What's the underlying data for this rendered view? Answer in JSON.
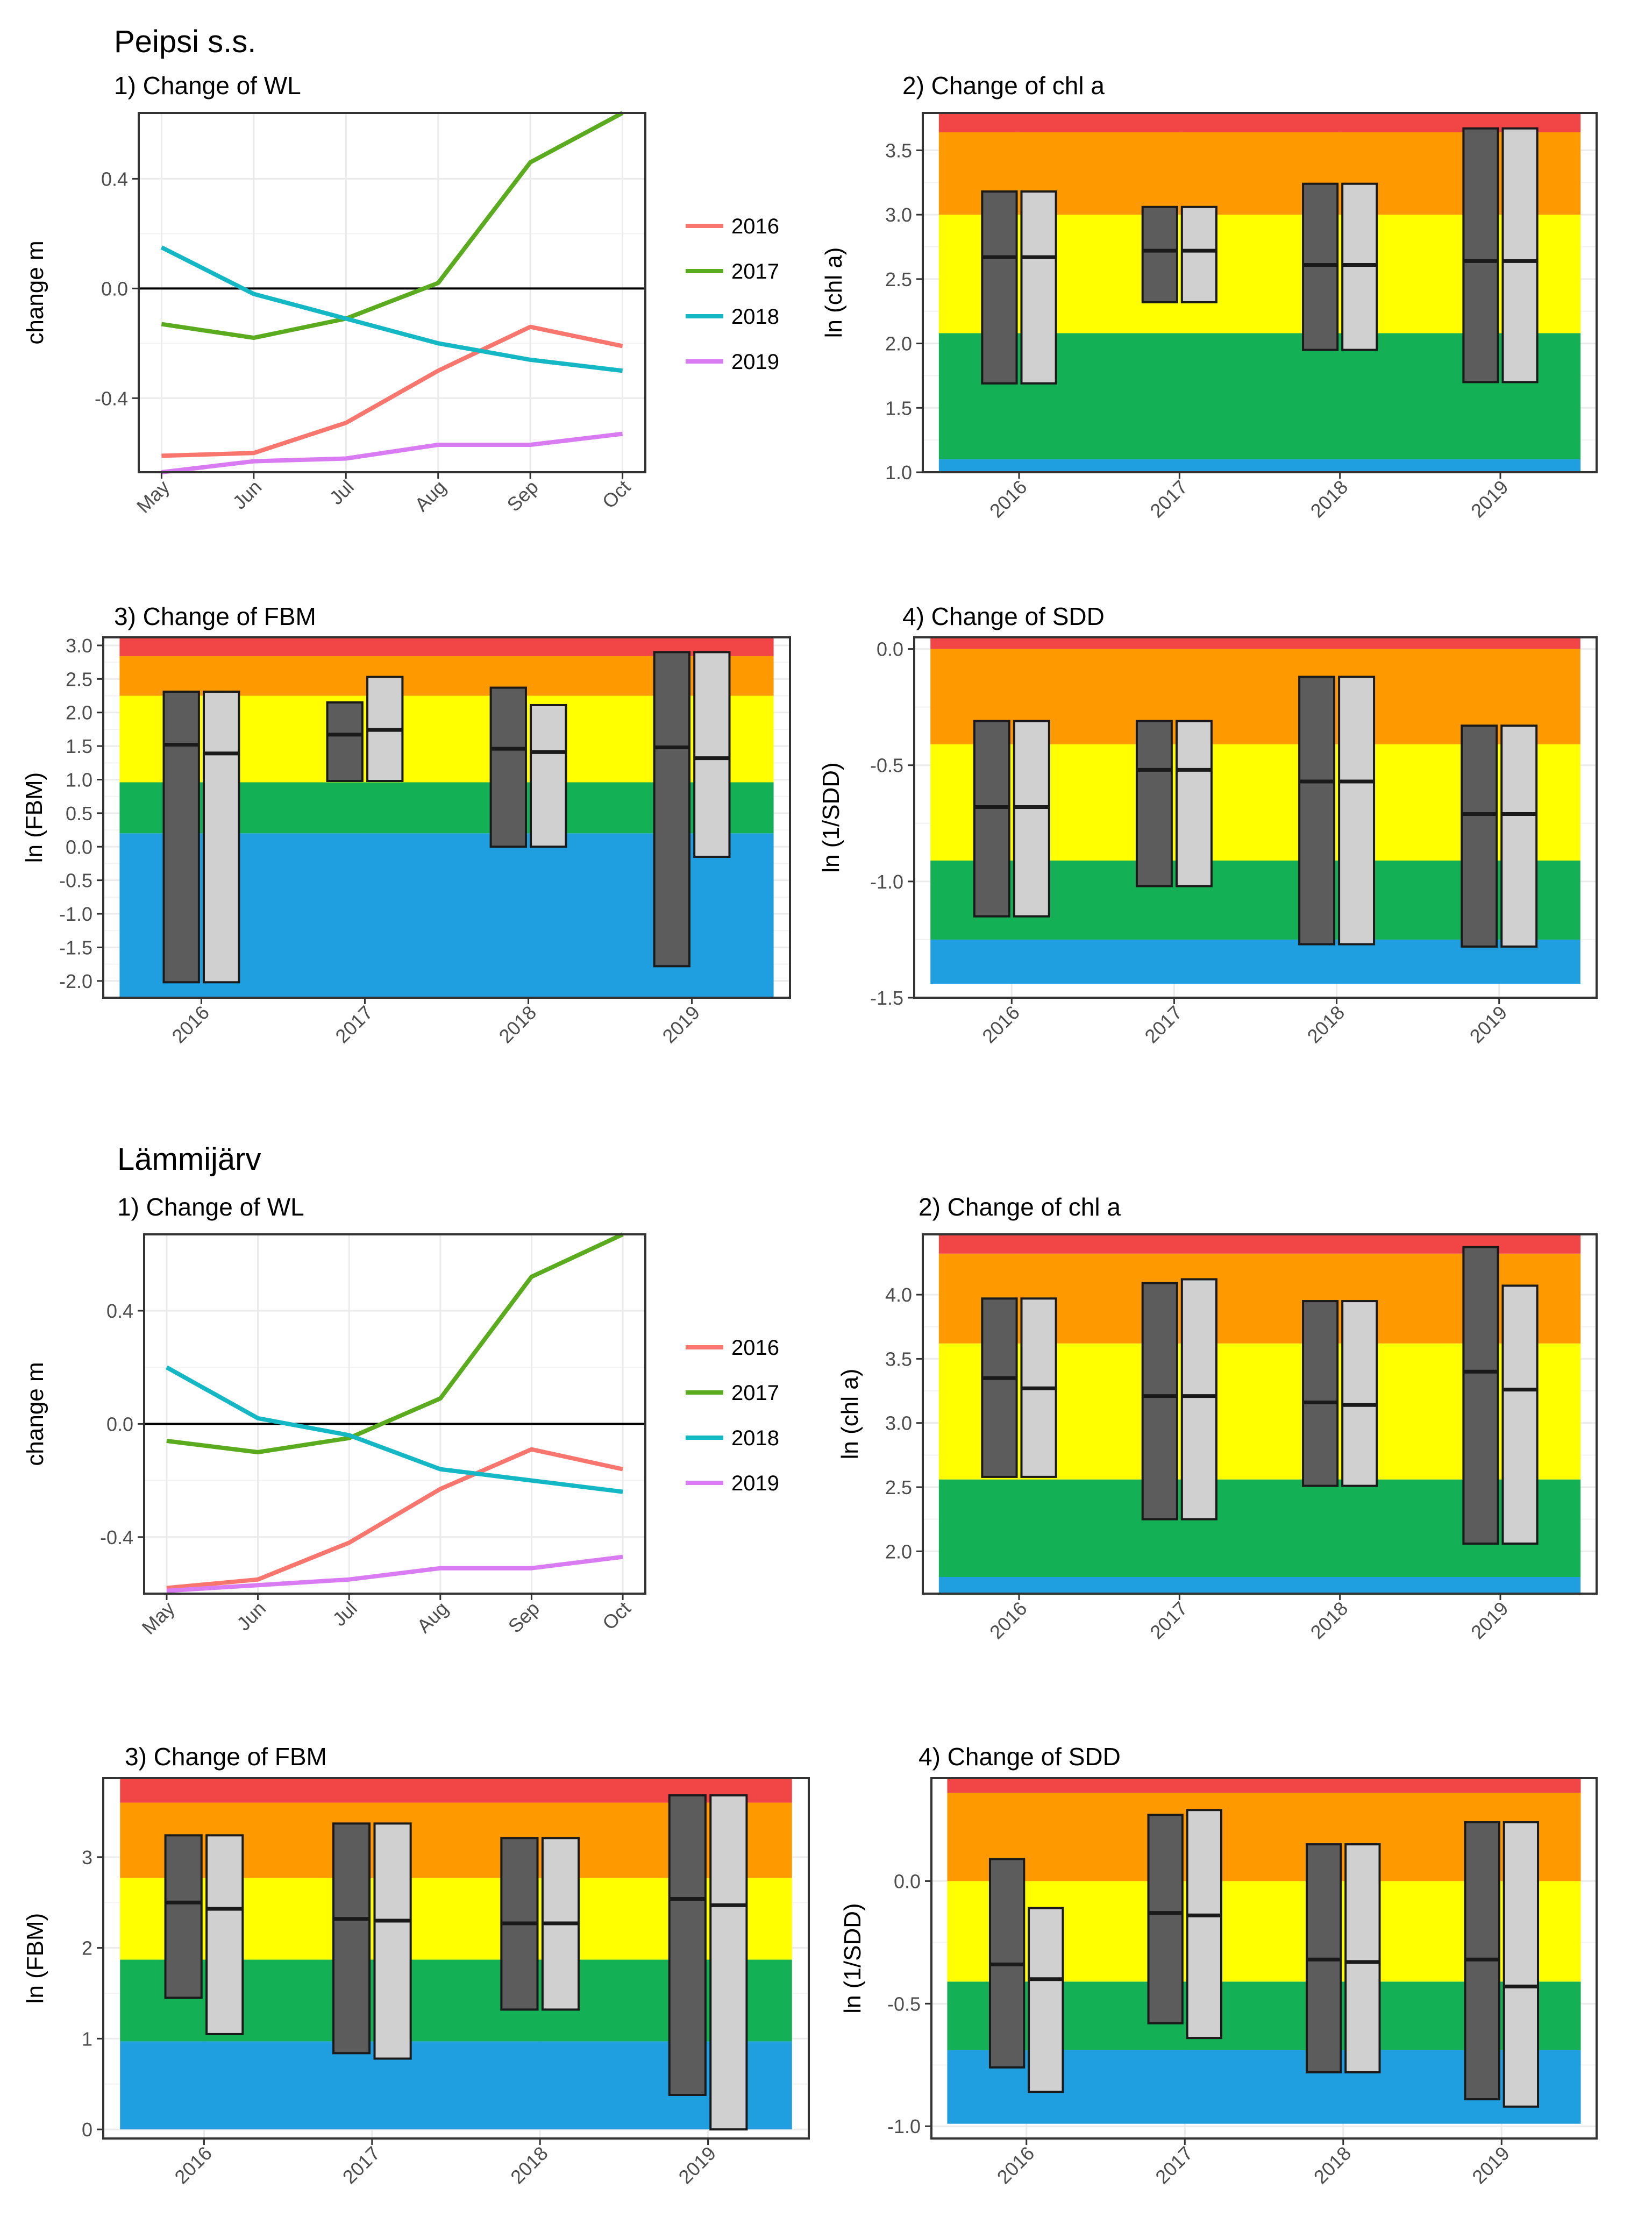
{
  "sections": [
    {
      "name": "Peipsi s.s."
    },
    {
      "name": "Lämmijärv"
    }
  ],
  "palette": {
    "red": "#f24545",
    "orange": "#ff9900",
    "yellow": "#ffff00",
    "green": "#14b055",
    "blue": "#1f9fe0",
    "dark_box": "#5c5c5c",
    "light_box": "#d0d0d0",
    "s2016": "#f8766d",
    "s2017": "#5bab1e",
    "s2018": "#14b8c5",
    "s2019": "#d97bf2"
  },
  "chart_data": [
    {
      "id": "p_wl",
      "type": "line",
      "title": "1) Change of WL",
      "ylabel": "change m",
      "categories": [
        "May",
        "Jun",
        "Jul",
        "Aug",
        "Sep",
        "Oct"
      ],
      "ylim": [
        -0.67,
        0.64
      ],
      "yticks": [
        0.4,
        0.0,
        -0.4
      ],
      "ytick_labels": [
        "0.4",
        "0.0",
        "-0.4"
      ],
      "reference_line": 0,
      "series": [
        {
          "name": "2016",
          "color": "#f8766d",
          "values": [
            -0.61,
            -0.6,
            -0.49,
            -0.3,
            -0.14,
            -0.21
          ]
        },
        {
          "name": "2017",
          "color": "#5bab1e",
          "values": [
            -0.13,
            -0.18,
            -0.11,
            0.02,
            0.46,
            0.64
          ]
        },
        {
          "name": "2018",
          "color": "#14b8c5",
          "values": [
            0.15,
            -0.02,
            -0.11,
            -0.2,
            -0.26,
            -0.3
          ]
        },
        {
          "name": "2019",
          "color": "#d97bf2",
          "values": [
            -0.67,
            -0.63,
            -0.62,
            -0.57,
            -0.57,
            -0.53
          ]
        }
      ]
    },
    {
      "id": "p_chl",
      "type": "box",
      "title": "2) Change of chl a",
      "ylabel": "ln (chl a)",
      "categories": [
        "2016",
        "2017",
        "2018",
        "2019"
      ],
      "ylim": [
        1.0,
        3.79
      ],
      "yticks": [
        1.0,
        1.5,
        2.0,
        2.5,
        3.0,
        3.5
      ],
      "ytick_labels": [
        "1.0",
        "1.5",
        "2.0",
        "2.5",
        "3.0",
        "3.5"
      ],
      "bands": [
        {
          "from": 1.0,
          "to": 1.1,
          "color": "blue"
        },
        {
          "from": 1.1,
          "to": 2.08,
          "color": "green"
        },
        {
          "from": 2.08,
          "to": 3.0,
          "color": "yellow"
        },
        {
          "from": 3.0,
          "to": 3.64,
          "color": "orange"
        },
        {
          "from": 3.64,
          "to": 3.79,
          "color": "red"
        }
      ],
      "boxes": [
        {
          "year": "2016",
          "dark": {
            "low": 1.69,
            "mid": 2.67,
            "high": 3.18
          },
          "light": {
            "low": 1.69,
            "mid": 2.67,
            "high": 3.18
          }
        },
        {
          "year": "2017",
          "dark": {
            "low": 2.32,
            "mid": 2.72,
            "high": 3.06
          },
          "light": {
            "low": 2.32,
            "mid": 2.72,
            "high": 3.06
          }
        },
        {
          "year": "2018",
          "dark": {
            "low": 1.95,
            "mid": 2.61,
            "high": 3.24
          },
          "light": {
            "low": 1.95,
            "mid": 2.61,
            "high": 3.24
          }
        },
        {
          "year": "2019",
          "dark": {
            "low": 1.7,
            "mid": 2.64,
            "high": 3.67
          },
          "light": {
            "low": 1.7,
            "mid": 2.64,
            "high": 3.67
          }
        }
      ]
    },
    {
      "id": "p_fbm",
      "type": "box",
      "title": "3) Change of FBM",
      "ylabel": "ln (FBM)",
      "categories": [
        "2016",
        "2017",
        "2018",
        "2019"
      ],
      "ylim": [
        -2.25,
        3.12
      ],
      "yticks": [
        3.0,
        2.5,
        2.0,
        1.5,
        1.0,
        0.5,
        0.0,
        -0.5,
        -1.0,
        -1.5,
        -2.0
      ],
      "ytick_labels": [
        "3.0",
        "2.5",
        "2.0",
        "1.5",
        "1.0",
        "0.5",
        "0.0",
        "-0.5",
        "-1.0",
        "-1.5",
        "-2.0"
      ],
      "bands": [
        {
          "from": -2.25,
          "to": 0.2,
          "color": "blue"
        },
        {
          "from": 0.2,
          "to": 0.96,
          "color": "green"
        },
        {
          "from": 0.96,
          "to": 2.25,
          "color": "yellow"
        },
        {
          "from": 2.25,
          "to": 2.84,
          "color": "orange"
        },
        {
          "from": 2.84,
          "to": 3.12,
          "color": "red"
        }
      ],
      "boxes": [
        {
          "year": "2016",
          "dark": {
            "low": -2.02,
            "mid": 1.52,
            "high": 2.31
          },
          "light": {
            "low": -2.02,
            "mid": 1.39,
            "high": 2.31
          }
        },
        {
          "year": "2017",
          "dark": {
            "low": 0.98,
            "mid": 1.67,
            "high": 2.15
          },
          "light": {
            "low": 0.98,
            "mid": 1.74,
            "high": 2.53
          }
        },
        {
          "year": "2018",
          "dark": {
            "low": 0.0,
            "mid": 1.46,
            "high": 2.37
          },
          "light": {
            "low": 0.0,
            "mid": 1.41,
            "high": 2.11
          }
        },
        {
          "year": "2019",
          "dark": {
            "low": -1.78,
            "mid": 1.48,
            "high": 2.9
          },
          "light": {
            "low": -0.15,
            "mid": 1.32,
            "high": 2.9
          }
        }
      ]
    },
    {
      "id": "p_sdd",
      "type": "box",
      "title": "4) Change of SDD",
      "ylabel": "ln (1/SDD)",
      "categories": [
        "2016",
        "2017",
        "2018",
        "2019"
      ],
      "ylim": [
        -1.5,
        0.05
      ],
      "yticks": [
        0.0,
        -0.5,
        -1.0,
        -1.5
      ],
      "ytick_labels": [
        "0.0",
        "-0.5",
        "-1.0",
        "-1.5"
      ],
      "bands": [
        {
          "from": -1.44,
          "to": -1.25,
          "color": "blue"
        },
        {
          "from": -1.25,
          "to": -0.91,
          "color": "green"
        },
        {
          "from": -0.91,
          "to": -0.41,
          "color": "yellow"
        },
        {
          "from": -0.41,
          "to": 0.0,
          "color": "orange"
        },
        {
          "from": 0.0,
          "to": 0.05,
          "color": "red"
        }
      ],
      "boxes": [
        {
          "year": "2016",
          "dark": {
            "low": -1.15,
            "mid": -0.68,
            "high": -0.31
          },
          "light": {
            "low": -1.15,
            "mid": -0.68,
            "high": -0.31
          }
        },
        {
          "year": "2017",
          "dark": {
            "low": -1.02,
            "mid": -0.52,
            "high": -0.31
          },
          "light": {
            "low": -1.02,
            "mid": -0.52,
            "high": -0.31
          }
        },
        {
          "year": "2018",
          "dark": {
            "low": -1.27,
            "mid": -0.57,
            "high": -0.12
          },
          "light": {
            "low": -1.27,
            "mid": -0.57,
            "high": -0.12
          }
        },
        {
          "year": "2019",
          "dark": {
            "low": -1.28,
            "mid": -0.71,
            "high": -0.33
          },
          "light": {
            "low": -1.28,
            "mid": -0.71,
            "high": -0.33
          }
        }
      ]
    },
    {
      "id": "l_wl",
      "type": "line",
      "title": "1) Change of WL",
      "ylabel": "change m",
      "categories": [
        "May",
        "Jun",
        "Jul",
        "Aug",
        "Sep",
        "Oct"
      ],
      "ylim": [
        -0.6,
        0.67
      ],
      "yticks": [
        0.4,
        0.0,
        -0.4
      ],
      "ytick_labels": [
        "0.4",
        "0.0",
        "-0.4"
      ],
      "reference_line": 0,
      "series": [
        {
          "name": "2016",
          "color": "#f8766d",
          "values": [
            -0.58,
            -0.55,
            -0.42,
            -0.23,
            -0.09,
            -0.16
          ]
        },
        {
          "name": "2017",
          "color": "#5bab1e",
          "values": [
            -0.06,
            -0.1,
            -0.05,
            0.09,
            0.52,
            0.67
          ]
        },
        {
          "name": "2018",
          "color": "#14b8c5",
          "values": [
            0.2,
            0.02,
            -0.04,
            -0.16,
            -0.2,
            -0.24
          ]
        },
        {
          "name": "2019",
          "color": "#d97bf2",
          "values": [
            -0.59,
            -0.57,
            -0.55,
            -0.51,
            -0.51,
            -0.47
          ]
        }
      ]
    },
    {
      "id": "l_chl",
      "type": "box",
      "title": "2) Change of chl a",
      "ylabel": "ln (chl a)",
      "categories": [
        "2016",
        "2017",
        "2018",
        "2019"
      ],
      "ylim": [
        1.67,
        4.47
      ],
      "yticks": [
        2.0,
        2.5,
        3.0,
        3.5,
        4.0
      ],
      "ytick_labels": [
        "2.0",
        "2.5",
        "3.0",
        "3.5",
        "4.0"
      ],
      "bands": [
        {
          "from": 1.67,
          "to": 1.8,
          "color": "blue"
        },
        {
          "from": 1.8,
          "to": 2.56,
          "color": "green"
        },
        {
          "from": 2.56,
          "to": 3.62,
          "color": "yellow"
        },
        {
          "from": 3.62,
          "to": 4.32,
          "color": "orange"
        },
        {
          "from": 4.32,
          "to": 4.47,
          "color": "red"
        }
      ],
      "boxes": [
        {
          "year": "2016",
          "dark": {
            "low": 2.58,
            "mid": 3.35,
            "high": 3.97
          },
          "light": {
            "low": 2.58,
            "mid": 3.27,
            "high": 3.97
          }
        },
        {
          "year": "2017",
          "dark": {
            "low": 2.25,
            "mid": 3.21,
            "high": 4.09
          },
          "light": {
            "low": 2.25,
            "mid": 3.21,
            "high": 4.12
          }
        },
        {
          "year": "2018",
          "dark": {
            "low": 2.51,
            "mid": 3.16,
            "high": 3.95
          },
          "light": {
            "low": 2.51,
            "mid": 3.14,
            "high": 3.95
          }
        },
        {
          "year": "2019",
          "dark": {
            "low": 2.06,
            "mid": 3.4,
            "high": 4.37
          },
          "light": {
            "low": 2.06,
            "mid": 3.26,
            "high": 4.07
          }
        }
      ]
    },
    {
      "id": "l_fbm",
      "type": "box",
      "title": "3) Change of FBM",
      "ylabel": "ln (FBM)",
      "categories": [
        "2016",
        "2017",
        "2018",
        "2019"
      ],
      "ylim": [
        -0.1,
        3.87
      ],
      "yticks": [
        0,
        1,
        2,
        3
      ],
      "ytick_labels": [
        "0",
        "1",
        "2",
        "3"
      ],
      "bands": [
        {
          "from": 0.0,
          "to": 0.97,
          "color": "blue"
        },
        {
          "from": 0.97,
          "to": 1.87,
          "color": "green"
        },
        {
          "from": 1.87,
          "to": 2.77,
          "color": "yellow"
        },
        {
          "from": 2.77,
          "to": 3.6,
          "color": "orange"
        },
        {
          "from": 3.6,
          "to": 3.87,
          "color": "red"
        }
      ],
      "boxes": [
        {
          "year": "2016",
          "dark": {
            "low": 1.45,
            "mid": 2.5,
            "high": 3.24
          },
          "light": {
            "low": 1.05,
            "mid": 2.43,
            "high": 3.24
          }
        },
        {
          "year": "2017",
          "dark": {
            "low": 0.84,
            "mid": 2.32,
            "high": 3.37
          },
          "light": {
            "low": 0.78,
            "mid": 2.3,
            "high": 3.37
          }
        },
        {
          "year": "2018",
          "dark": {
            "low": 1.32,
            "mid": 2.27,
            "high": 3.21
          },
          "light": {
            "low": 1.32,
            "mid": 2.27,
            "high": 3.21
          }
        },
        {
          "year": "2019",
          "dark": {
            "low": 0.38,
            "mid": 2.54,
            "high": 3.68
          },
          "light": {
            "low": 0.0,
            "mid": 2.47,
            "high": 3.68
          }
        }
      ]
    },
    {
      "id": "l_sdd",
      "type": "box",
      "title": "4) Change of SDD",
      "ylabel": "ln (1/SDD)",
      "categories": [
        "2016",
        "2017",
        "2018",
        "2019"
      ],
      "ylim": [
        -1.05,
        0.42
      ],
      "yticks": [
        0.0,
        -0.5,
        -1.0
      ],
      "ytick_labels": [
        "0.0",
        "-0.5",
        "-1.0"
      ],
      "bands": [
        {
          "from": -0.99,
          "to": -0.69,
          "color": "blue"
        },
        {
          "from": -0.69,
          "to": -0.41,
          "color": "green"
        },
        {
          "from": -0.41,
          "to": 0.0,
          "color": "yellow"
        },
        {
          "from": 0.0,
          "to": 0.36,
          "color": "orange"
        },
        {
          "from": 0.36,
          "to": 0.42,
          "color": "red"
        }
      ],
      "boxes": [
        {
          "year": "2016",
          "dark": {
            "low": -0.76,
            "mid": -0.34,
            "high": 0.09
          },
          "light": {
            "low": -0.86,
            "mid": -0.4,
            "high": -0.11
          }
        },
        {
          "year": "2017",
          "dark": {
            "low": -0.58,
            "mid": -0.13,
            "high": 0.27
          },
          "light": {
            "low": -0.64,
            "mid": -0.14,
            "high": 0.29
          }
        },
        {
          "year": "2018",
          "dark": {
            "low": -0.78,
            "mid": -0.32,
            "high": 0.15
          },
          "light": {
            "low": -0.78,
            "mid": -0.33,
            "high": 0.15
          }
        },
        {
          "year": "2019",
          "dark": {
            "low": -0.89,
            "mid": -0.32,
            "high": 0.24
          },
          "light": {
            "low": -0.92,
            "mid": -0.43,
            "high": 0.24
          }
        }
      ]
    }
  ]
}
